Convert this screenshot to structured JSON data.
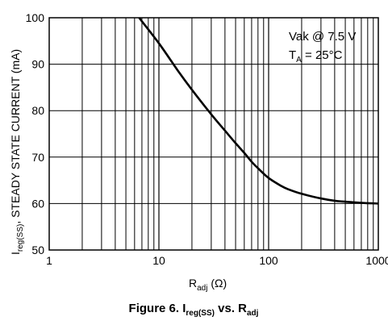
{
  "chart_data": {
    "type": "line",
    "x_scale": "log",
    "xlim": [
      1,
      1000
    ],
    "ylim": [
      50,
      100
    ],
    "grid": true,
    "x_ticks": [
      "1",
      "10",
      "100",
      "1000"
    ],
    "y_ticks": [
      "50",
      "60",
      "70",
      "80",
      "90",
      "100"
    ],
    "xlabel": {
      "main": "R",
      "sub": "adj",
      "rest": " (Ω)"
    },
    "ylabel": {
      "main": "I",
      "sub": "reg(SS)",
      "rest": ", STEADY STATE CURRENT (mA)"
    },
    "annotations": {
      "line1": "Vak @ 7.5 V",
      "line2_main": "T",
      "line2_sub": "A",
      "line2_rest": " = 25°C"
    },
    "caption": {
      "prefix": "Figure 6. I",
      "sub1": "reg(SS)",
      "middle": " vs. R",
      "sub2": "adj"
    },
    "series": [
      {
        "x": [
          6.6,
          10,
          15,
          20,
          30,
          40,
          50,
          60,
          70,
          80,
          100,
          130,
          150,
          200,
          300,
          400,
          500,
          700,
          1000
        ],
        "y": [
          100,
          94.5,
          88.5,
          84.5,
          79.2,
          75.7,
          73.0,
          70.9,
          69.0,
          67.6,
          65.5,
          63.8,
          63.1,
          62.1,
          61.1,
          60.6,
          60.4,
          60.15,
          60.0
        ]
      }
    ]
  }
}
